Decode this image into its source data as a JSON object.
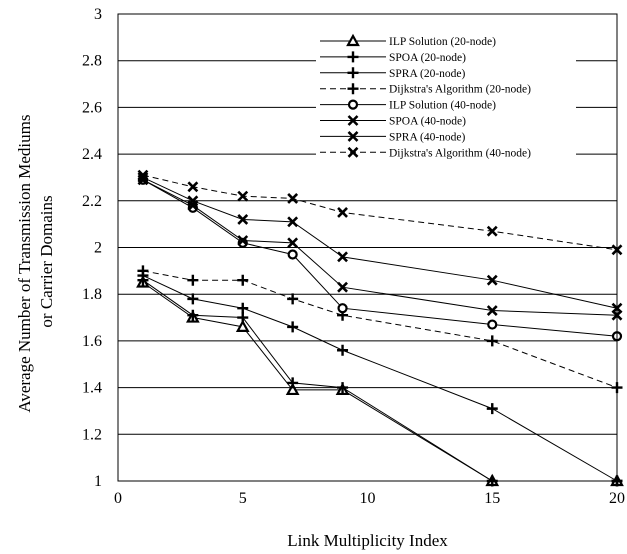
{
  "chart_data": {
    "type": "line",
    "title": "",
    "xlabel": "Link Multiplicity Index",
    "ylabel": "Average Number of Transmission Mediums or Carrier Domains",
    "ylabel_lines": [
      "Average Number of Transmission Mediums",
      "or Carrier Domains"
    ],
    "xlim": [
      0,
      20
    ],
    "ylim": [
      1,
      3
    ],
    "xticks": [
      "0",
      "5",
      "10",
      "15",
      "20"
    ],
    "yticks": [
      "1",
      "1.2",
      "1.4",
      "1.6",
      "1.8",
      "2",
      "2.2",
      "2.4",
      "2.6",
      "2.8",
      "3"
    ],
    "grid": "horizontal",
    "legend_position": "top-right",
    "series": [
      {
        "name": "ILP Solution (20-node)",
        "marker": "triangle",
        "dash": "solid",
        "x": [
          1,
          3,
          5,
          7,
          9,
          15,
          20
        ],
        "y": [
          1.85,
          1.7,
          1.66,
          1.39,
          1.39,
          1.0,
          1.0
        ]
      },
      {
        "name": "SPOA (20-node)",
        "marker": "plus",
        "dash": "solid",
        "x": [
          1,
          3,
          5,
          7,
          9,
          15,
          20
        ],
        "y": [
          1.86,
          1.71,
          1.7,
          1.42,
          1.4,
          1.0,
          1.0
        ]
      },
      {
        "name": "SPRA (20-node)",
        "marker": "plus",
        "dash": "solid",
        "x": [
          1,
          3,
          5,
          7,
          9,
          15,
          20
        ],
        "y": [
          1.88,
          1.78,
          1.74,
          1.66,
          1.56,
          1.31,
          1.0
        ]
      },
      {
        "name": "Dijkstra's Algorithm (20-node)",
        "marker": "plus",
        "dash": "dashed",
        "x": [
          1,
          3,
          5,
          7,
          9,
          15,
          20
        ],
        "y": [
          1.9,
          1.86,
          1.86,
          1.78,
          1.71,
          1.6,
          1.4
        ]
      },
      {
        "name": "ILP Solution (40-node)",
        "marker": "circle",
        "dash": "solid",
        "x": [
          1,
          3,
          5,
          7,
          9,
          15,
          20
        ],
        "y": [
          2.29,
          2.17,
          2.02,
          1.97,
          1.74,
          1.67,
          1.62
        ]
      },
      {
        "name": "SPOA (40-node)",
        "marker": "x",
        "dash": "solid",
        "x": [
          1,
          3,
          5,
          7,
          9,
          15,
          20
        ],
        "y": [
          2.29,
          2.18,
          2.03,
          2.02,
          1.83,
          1.73,
          1.71
        ]
      },
      {
        "name": "SPRA (40-node)",
        "marker": "x",
        "dash": "solid",
        "x": [
          1,
          3,
          5,
          7,
          9,
          15,
          20
        ],
        "y": [
          2.3,
          2.2,
          2.12,
          2.11,
          1.96,
          1.86,
          1.74
        ]
      },
      {
        "name": "Dijkstra's Algorithm (40-node)",
        "marker": "x",
        "dash": "dashed",
        "x": [
          1,
          3,
          5,
          7,
          9,
          15,
          20
        ],
        "y": [
          2.31,
          2.26,
          2.22,
          2.21,
          2.15,
          2.07,
          1.99
        ]
      }
    ]
  }
}
